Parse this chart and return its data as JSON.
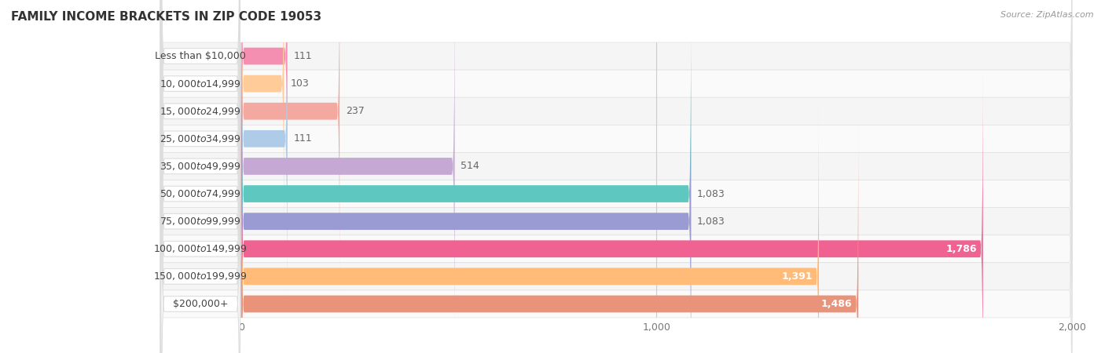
{
  "title": "FAMILY INCOME BRACKETS IN ZIP CODE 19053",
  "source": "Source: ZipAtlas.com",
  "categories": [
    "Less than $10,000",
    "$10,000 to $14,999",
    "$15,000 to $24,999",
    "$25,000 to $34,999",
    "$35,000 to $49,999",
    "$50,000 to $74,999",
    "$75,000 to $99,999",
    "$100,000 to $149,999",
    "$150,000 to $199,999",
    "$200,000+"
  ],
  "values": [
    111,
    103,
    237,
    111,
    514,
    1083,
    1083,
    1786,
    1391,
    1486
  ],
  "bar_colors": [
    "#F48FB1",
    "#FFCC99",
    "#F4A9A0",
    "#AECCE8",
    "#C5A8D4",
    "#5EC8C0",
    "#9B9BD4",
    "#F06292",
    "#FFBB77",
    "#E8937A"
  ],
  "background_color": "#FFFFFF",
  "row_bg_even": "#F5F5F5",
  "row_bg_odd": "#FAFAFA",
  "xlim_min": 0,
  "xlim_max": 2000,
  "xticks": [
    0,
    1000,
    2000
  ],
  "title_fontsize": 11,
  "label_fontsize": 9,
  "value_fontsize": 9,
  "value_color_inside": "#FFFFFF",
  "value_color_outside": "#666666",
  "value_threshold": 1200
}
